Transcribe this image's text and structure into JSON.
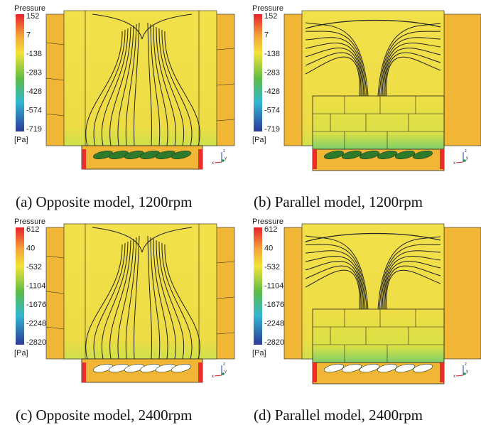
{
  "panels": [
    {
      "colorbar": {
        "title": "Pressure",
        "ticks": [
          "152",
          "7",
          "-138",
          "-283",
          "-428",
          "-574",
          "-719"
        ],
        "unit": "[Pa]"
      },
      "triad": [
        "z",
        "x",
        "y"
      ],
      "caption": "(a) Opposite model, 1200rpm"
    },
    {
      "colorbar": {
        "title": "Pressure",
        "ticks": [
          "152",
          "7",
          "-138",
          "-283",
          "-428",
          "-574",
          "-719"
        ],
        "unit": "[Pa]"
      },
      "triad": [
        "z",
        "x",
        "y"
      ],
      "caption": "(b) Parallel model, 1200rpm"
    },
    {
      "colorbar": {
        "title": "Pressure",
        "ticks": [
          "612",
          "40",
          "-532",
          "-1104",
          "-1676",
          "-2248",
          "-2820"
        ],
        "unit": "[Pa]"
      },
      "triad": [
        "z",
        "x",
        "y"
      ],
      "caption": "(c) Opposite model, 2400rpm"
    },
    {
      "colorbar": {
        "title": "Pressure",
        "ticks": [
          "612",
          "40",
          "-532",
          "-1104",
          "-1676",
          "-2248",
          "-2820"
        ],
        "unit": "[Pa]"
      },
      "triad": [
        "z",
        "x",
        "y"
      ],
      "caption": "(d) Parallel model, 2400rpm"
    }
  ]
}
